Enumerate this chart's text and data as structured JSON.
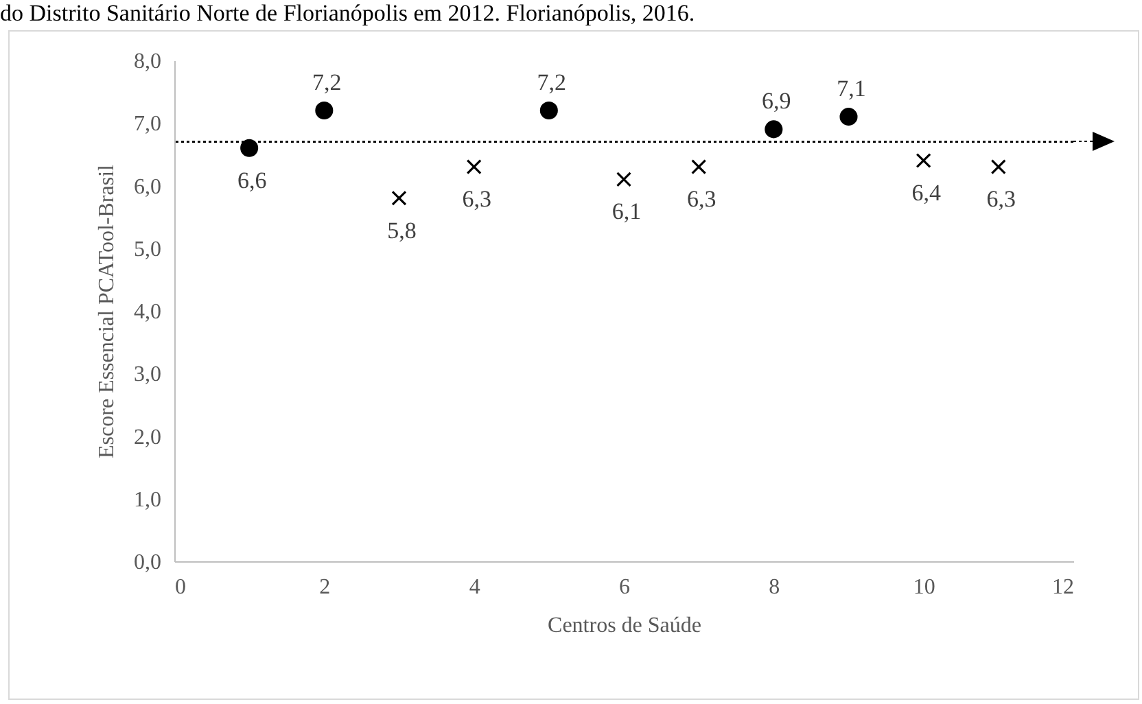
{
  "chart_data": {
    "type": "scatter",
    "title": "do Distrito Sanitário Norte de Florianópolis em 2012. Florianópolis, 2016.",
    "xlabel": "Centros de Saúde",
    "ylabel": "Escore Essencial PCATool-Brasil",
    "series": [
      {
        "color": "#000000",
        "marker": "circle",
        "x": [
          1,
          2,
          5,
          8,
          9
        ],
        "values": [
          6.6,
          7.2,
          7.2,
          6.9,
          7.1
        ],
        "value_labels": [
          "6,6",
          "7,2",
          "7,2",
          "6,9",
          "7,1"
        ]
      },
      {
        "color": "#000000",
        "marker": "cross",
        "x": [
          3,
          4,
          6,
          7,
          10,
          11
        ],
        "values": [
          5.8,
          6.3,
          6.1,
          6.3,
          6.4,
          6.3
        ],
        "value_labels": [
          "5,8",
          "6,3",
          "6,1",
          "6,3",
          "6,4",
          "6,3"
        ]
      }
    ],
    "xlim": [
      0,
      12
    ],
    "xticks": [
      0,
      2,
      4,
      6,
      8,
      10,
      12
    ],
    "ylim": [
      0,
      8
    ],
    "yticks": [
      {
        "value": 0,
        "label": "0,0"
      },
      {
        "value": 1,
        "label": "1,0"
      },
      {
        "value": 2,
        "label": "2,0"
      },
      {
        "value": 3,
        "label": "3,0"
      },
      {
        "value": 4,
        "label": "4,0"
      },
      {
        "value": 5,
        "label": "5,0"
      },
      {
        "value": 6,
        "label": "6,0"
      },
      {
        "value": 7,
        "label": "7,0"
      },
      {
        "value": 8,
        "label": "8,0"
      }
    ],
    "ref_lines": [
      {
        "axis": "y",
        "value": 6.7,
        "color": "#000000",
        "line_style": "dotted"
      }
    ],
    "grid": false
  }
}
